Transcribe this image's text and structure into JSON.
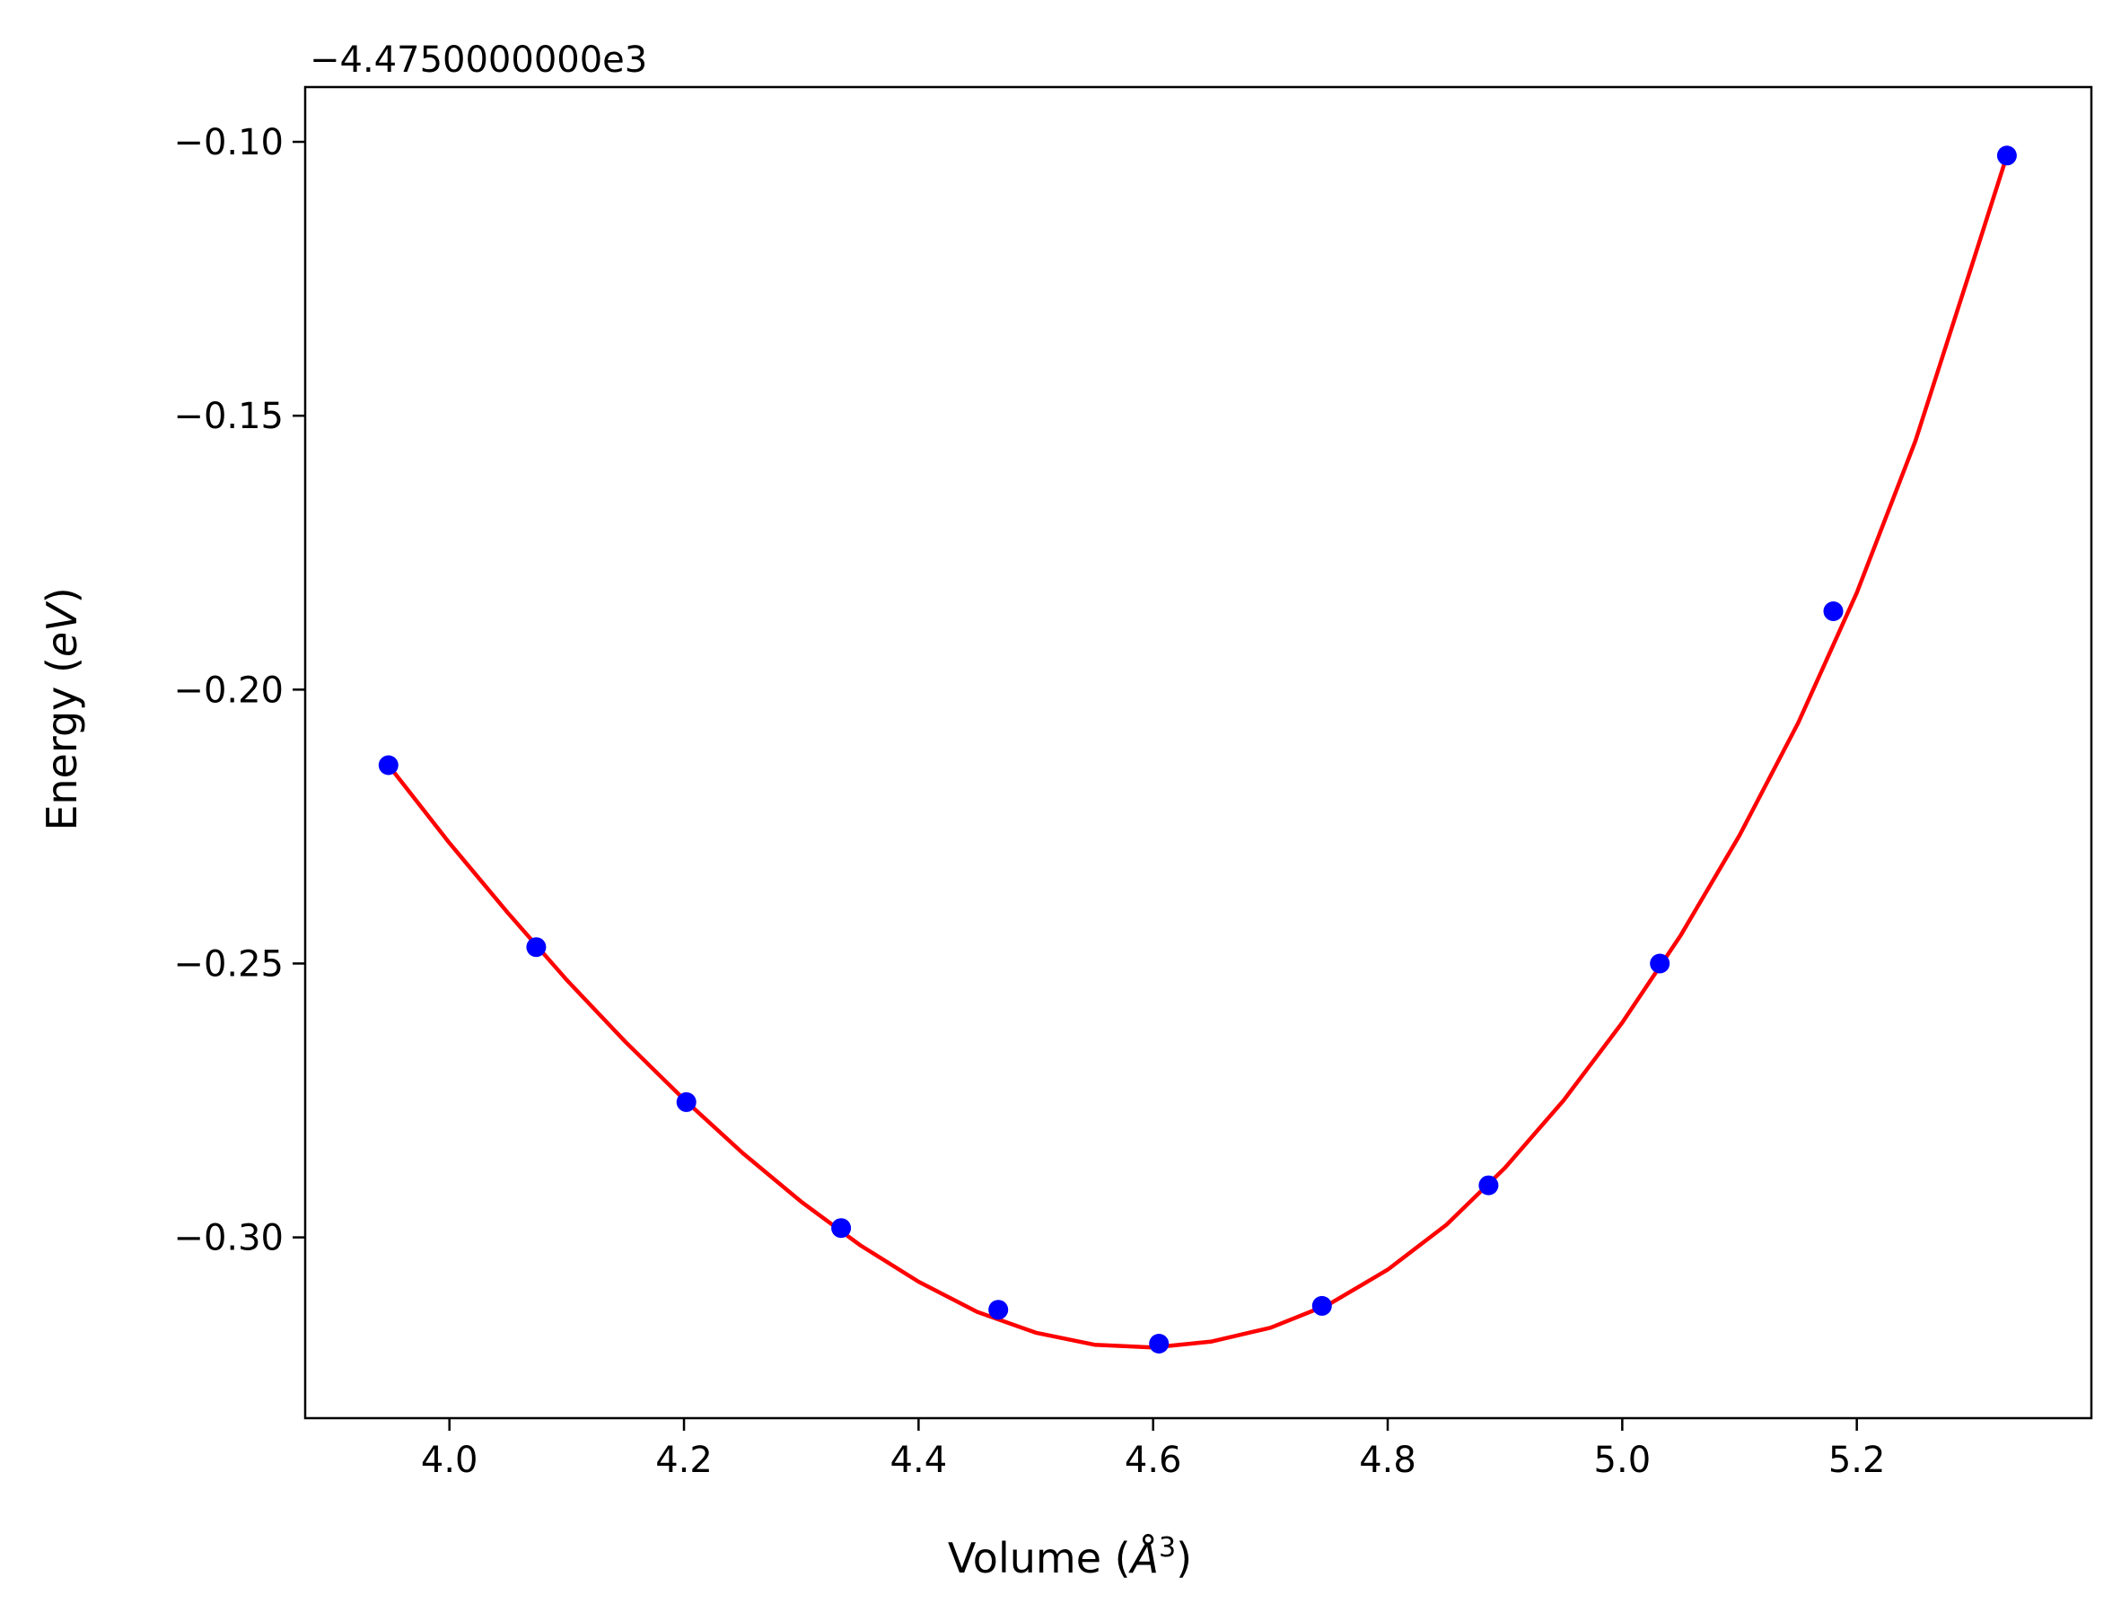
{
  "chart_data": {
    "type": "scatter",
    "xlabel": "Volume (Å³)",
    "xlabel_parts": {
      "text": "Volume (",
      "symbol": "Å",
      "sup": "3",
      "close": ")"
    },
    "ylabel": "Energy (eV)",
    "ylabel_parts": {
      "text": "Energy (",
      "symbol": "eV",
      "close": ")"
    },
    "y_offset_text": "−4.4750000000e3",
    "xlim": [
      3.877,
      5.4
    ],
    "ylim": [
      -0.333,
      -0.09
    ],
    "x_ticks": [
      4.0,
      4.2,
      4.4,
      4.6,
      4.8,
      5.0,
      5.2
    ],
    "x_tick_labels": [
      "4.0",
      "4.2",
      "4.4",
      "4.6",
      "4.8",
      "5.0",
      "5.2"
    ],
    "y_ticks": [
      -0.1,
      -0.15,
      -0.2,
      -0.25,
      -0.3
    ],
    "y_tick_labels": [
      "−0.10",
      "−0.15",
      "−0.20",
      "−0.25",
      "−0.30"
    ],
    "grid": false,
    "legend": "none",
    "series": [
      {
        "kind": "markers",
        "color": "#0000ff",
        "x": [
          3.948,
          4.074,
          4.202,
          4.334,
          4.468,
          4.605,
          4.744,
          4.886,
          5.032,
          5.18,
          5.328
        ],
        "y": [
          -0.2138,
          -0.247,
          -0.2753,
          -0.2983,
          -0.3132,
          -0.3194,
          -0.3125,
          -0.2905,
          -0.25,
          -0.1857,
          -0.1025
        ]
      },
      {
        "kind": "fit-curve",
        "color": "#ff0000",
        "x": [
          3.948,
          4.0,
          4.05,
          4.1,
          4.15,
          4.2,
          4.25,
          4.3,
          4.35,
          4.4,
          4.45,
          4.5,
          4.55,
          4.6,
          4.65,
          4.7,
          4.75,
          4.8,
          4.85,
          4.9,
          4.95,
          5.0,
          5.05,
          5.1,
          5.15,
          5.2,
          5.25,
          5.3,
          5.328
        ],
        "y": [
          -0.2138,
          -0.228,
          -0.2408,
          -0.253,
          -0.2643,
          -0.2748,
          -0.2846,
          -0.2935,
          -0.3014,
          -0.3081,
          -0.3136,
          -0.3174,
          -0.3196,
          -0.3201,
          -0.319,
          -0.3165,
          -0.3122,
          -0.3059,
          -0.2977,
          -0.2873,
          -0.275,
          -0.2608,
          -0.2448,
          -0.2266,
          -0.2061,
          -0.1823,
          -0.1546,
          -0.1213,
          -0.1025
        ]
      }
    ]
  }
}
